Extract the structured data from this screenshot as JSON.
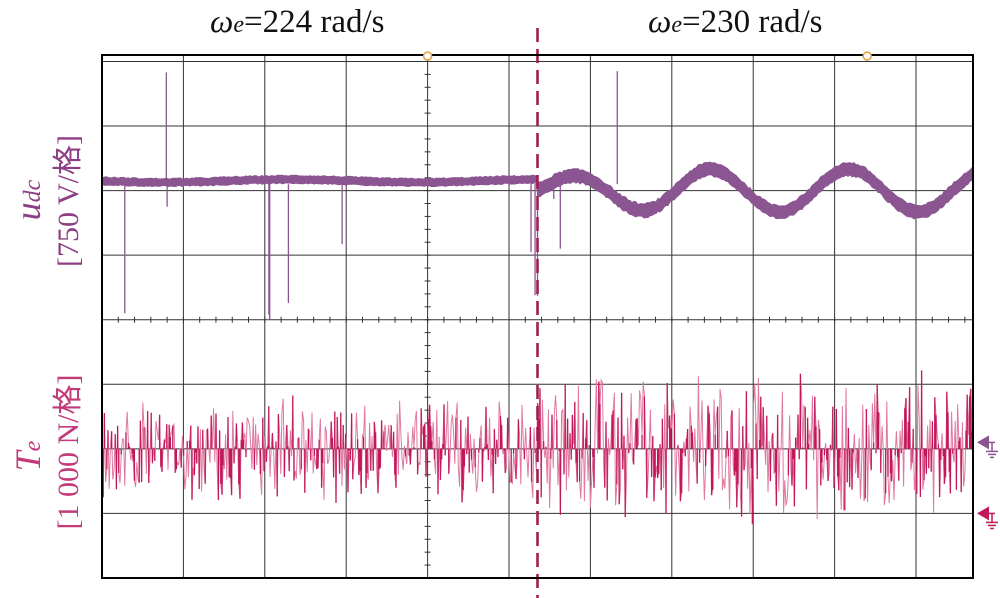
{
  "annotations": {
    "left_omega_symbol": "ω",
    "left_omega_sub": "e",
    "left_omega_text": "=224 rad/s",
    "right_omega_symbol": "ω",
    "right_omega_sub": "e",
    "right_omega_text": "=230 rad/s"
  },
  "colors": {
    "udc": "#8b5591",
    "udc_label": "#8e3e84",
    "te": "#c2185b",
    "te_light": "#e07aa0",
    "te_label": "#c23a7a",
    "divider": "#9e1f4d",
    "grid": "#333333",
    "frame": "#000000",
    "trigger_marker": "#e6a03c"
  },
  "chart_data": {
    "type": "line",
    "grid": true,
    "x_divisions": 10.7,
    "y_divisions": 8.1,
    "switch_at_division": 5.35,
    "series": [
      {
        "name": "u",
        "name_sub": "dc",
        "scale": "[750 V/格]",
        "reference_level_div": 2.1,
        "before_switch": {
          "mean_div": 6.15,
          "ripple_div": 0.07
        },
        "after_switch": {
          "mean_div": 6.0,
          "oscillation_amplitude_div": 0.33,
          "oscillation_period_div": 1.7,
          "ripple_div": 0.12
        },
        "spikes_div": [
          {
            "x": 0.28,
            "y": 4.1
          },
          {
            "x": 0.79,
            "y": 7.83
          },
          {
            "x": 0.8,
            "y": 5.75
          },
          {
            "x": 1.0,
            "y": 6.05
          },
          {
            "x": 2.05,
            "y": 4.08
          },
          {
            "x": 2.06,
            "y": 4.0
          },
          {
            "x": 2.29,
            "y": 4.26
          },
          {
            "x": 2.95,
            "y": 5.17
          },
          {
            "x": 5.27,
            "y": 5.05
          },
          {
            "x": 5.32,
            "y": 4.38
          },
          {
            "x": 5.35,
            "y": 4.37
          },
          {
            "x": 5.55,
            "y": 5.87
          },
          {
            "x": 5.63,
            "y": 5.1
          },
          {
            "x": 6.33,
            "y": 7.85
          }
        ]
      },
      {
        "name": "T",
        "name_sub": "e",
        "scale": "[1 000 N/格]",
        "reference_level_div": 1.0,
        "before_switch": {
          "mean_div": 2.0,
          "noise_amplitude_div": 0.9
        },
        "after_switch": {
          "mean_div": 2.0,
          "noise_amplitude_div": 1.3
        }
      }
    ]
  }
}
